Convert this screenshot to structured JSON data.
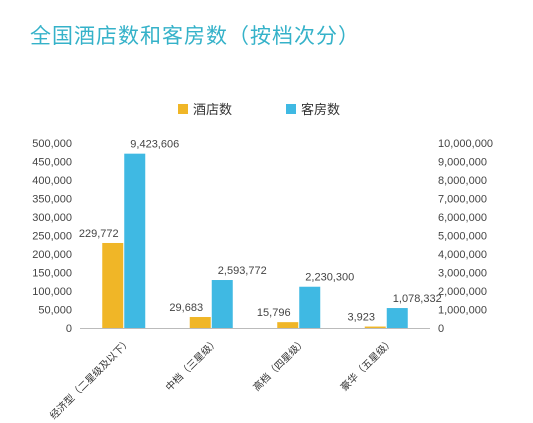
{
  "page": {
    "title": "全国酒店数和客房数（按档次分）"
  },
  "chart_data": {
    "type": "bar",
    "categories": [
      "经济型（二星级及以下）",
      "中档（三星级）",
      "高档（四星级）",
      "豪华（五星级）"
    ],
    "series": [
      {
        "name": "酒店数",
        "axis": "left",
        "color": "#f0b627",
        "values": [
          229772,
          29683,
          15796,
          3923
        ],
        "labels": [
          "229,772",
          "29,683",
          "15,796",
          "3,923"
        ]
      },
      {
        "name": "客房数",
        "axis": "right",
        "color": "#3fb9e3",
        "values": [
          9423606,
          2593772,
          2230300,
          1078332
        ],
        "labels": [
          "9,423,606",
          "2,593,772",
          "2,230,300",
          "1,078,332"
        ]
      }
    ],
    "ylim_left": [
      0,
      500000
    ],
    "ylim_right": [
      0,
      10000000
    ],
    "yticks_left": [
      "0",
      "50,000",
      "100,000",
      "150,000",
      "200,000",
      "250,000",
      "300,000",
      "350,000",
      "400,000",
      "450,000",
      "500,000"
    ],
    "yticks_right": [
      "0",
      "1,000,000",
      "2,000,000",
      "3,000,000",
      "4,000,000",
      "5,000,000",
      "6,000,000",
      "7,000,000",
      "8,000,000",
      "9,000,000",
      "10,000,000"
    ],
    "legend_position": "top-center",
    "grid": false
  }
}
